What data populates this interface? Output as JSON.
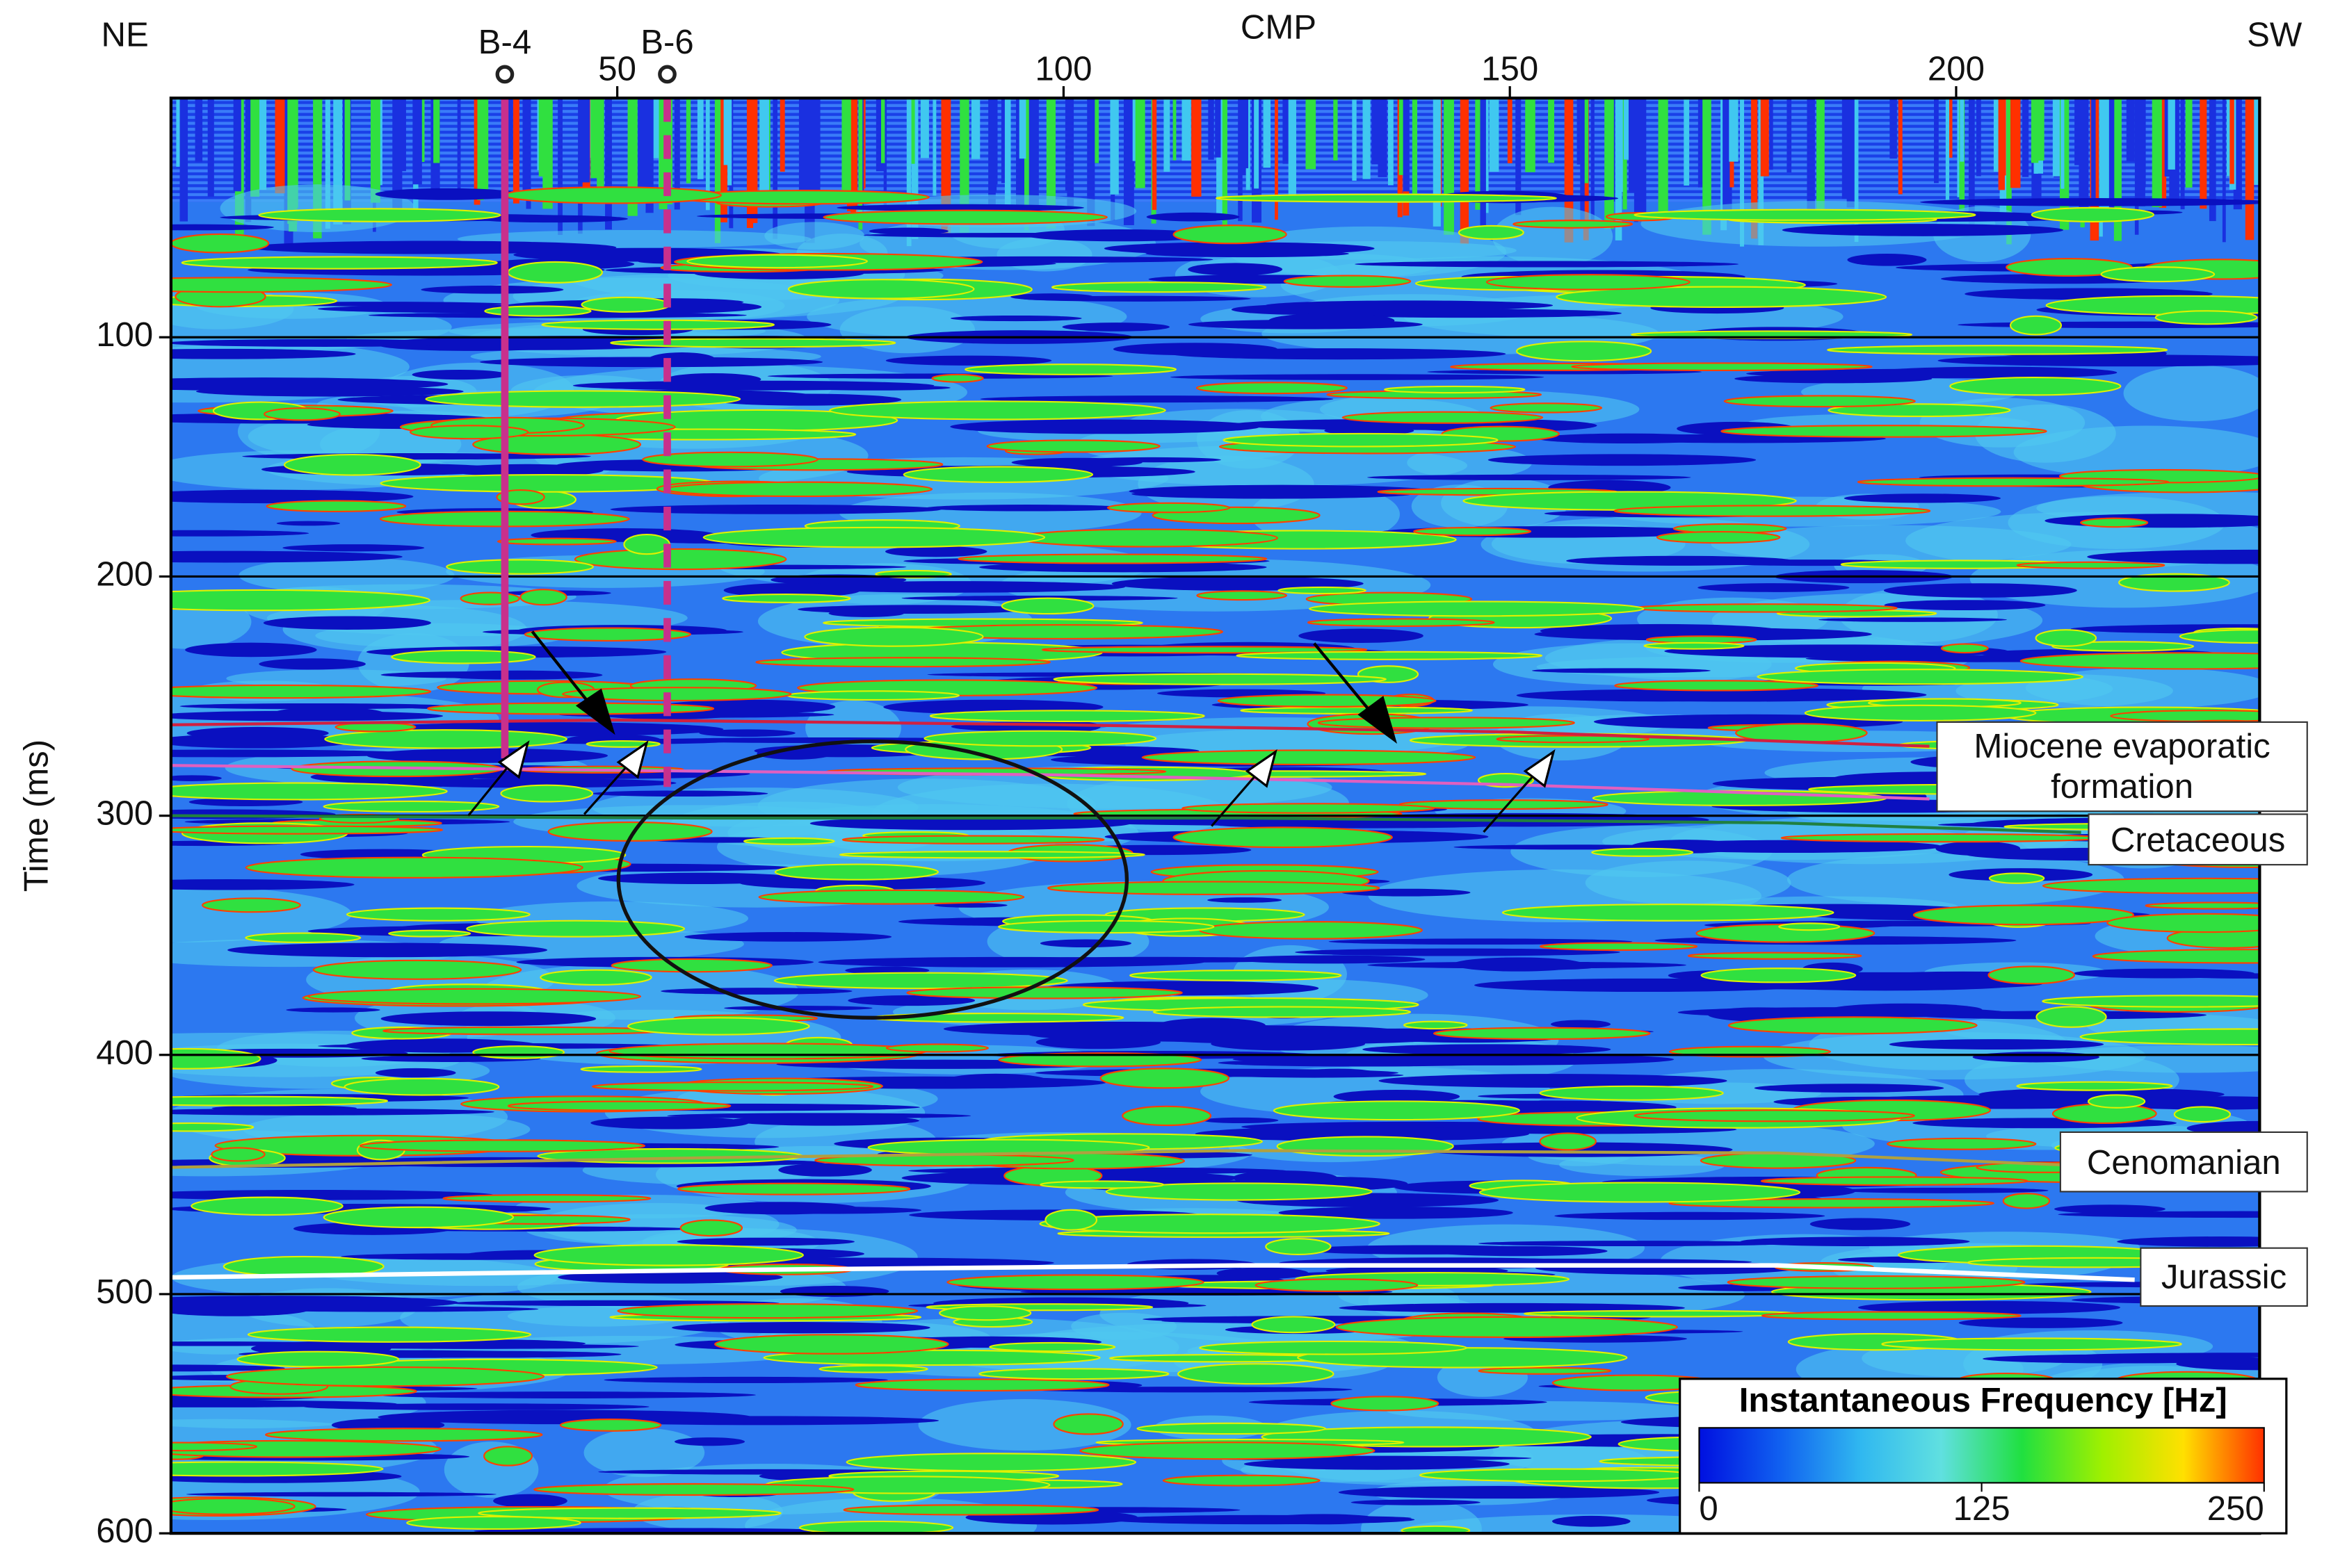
{
  "chart_data": {
    "type": "seismic-section",
    "x_label": "CMP",
    "y_label": "Time (ms)",
    "left_label": "NE",
    "right_label": "SW",
    "xlim": [
      0,
      234
    ],
    "ylim": [
      0,
      600
    ],
    "y_inverted": true,
    "xticks": [
      50,
      100,
      150,
      200
    ],
    "yticks": [
      100,
      200,
      300,
      400,
      500,
      600
    ],
    "grid": true,
    "wells": [
      {
        "name": "B-4",
        "x": 37.4,
        "depth": 276,
        "style": "solid"
      },
      {
        "name": "B-6",
        "x": 55.6,
        "depth": 288,
        "style": "dashed"
      }
    ],
    "well_color": "#c8308c",
    "horizons": [
      {
        "color": "#d02040",
        "x": [
          0,
          50,
          100,
          150,
          197
        ],
        "values": [
          262,
          260,
          262,
          265,
          271
        ]
      },
      {
        "color": "#e060c0",
        "x": [
          0,
          50,
          100,
          150,
          197
        ],
        "values": [
          279,
          281,
          283,
          287,
          293
        ]
      },
      {
        "name": "Miocene evaporatic formation",
        "x": [],
        "values": []
      },
      {
        "name": "Cretaceous",
        "color": "#208040",
        "x": [
          0,
          60,
          120,
          180,
          214
        ],
        "values": [
          300,
          301,
          301,
          303,
          307
        ]
      },
      {
        "name": "Cenomanian",
        "color": "#b0a040",
        "x": [
          0,
          60,
          120,
          180,
          212
        ],
        "values": [
          447,
          443,
          440,
          441,
          446
        ]
      },
      {
        "name": "Jurassic",
        "color": "#ffffff",
        "x": [
          0,
          60,
          120,
          180,
          220
        ],
        "values": [
          493,
          490,
          488,
          488,
          494
        ]
      }
    ],
    "colorbar": {
      "label": "Instantaneous Frequency [Hz]",
      "lim": [
        0,
        250
      ],
      "ticks": [
        0,
        125,
        250
      ],
      "colors": [
        "#0010e0",
        "#1060f0",
        "#30b8f0",
        "#60e0e0",
        "#20e040",
        "#a0f000",
        "#ffe000",
        "#ff3000"
      ]
    }
  }
}
